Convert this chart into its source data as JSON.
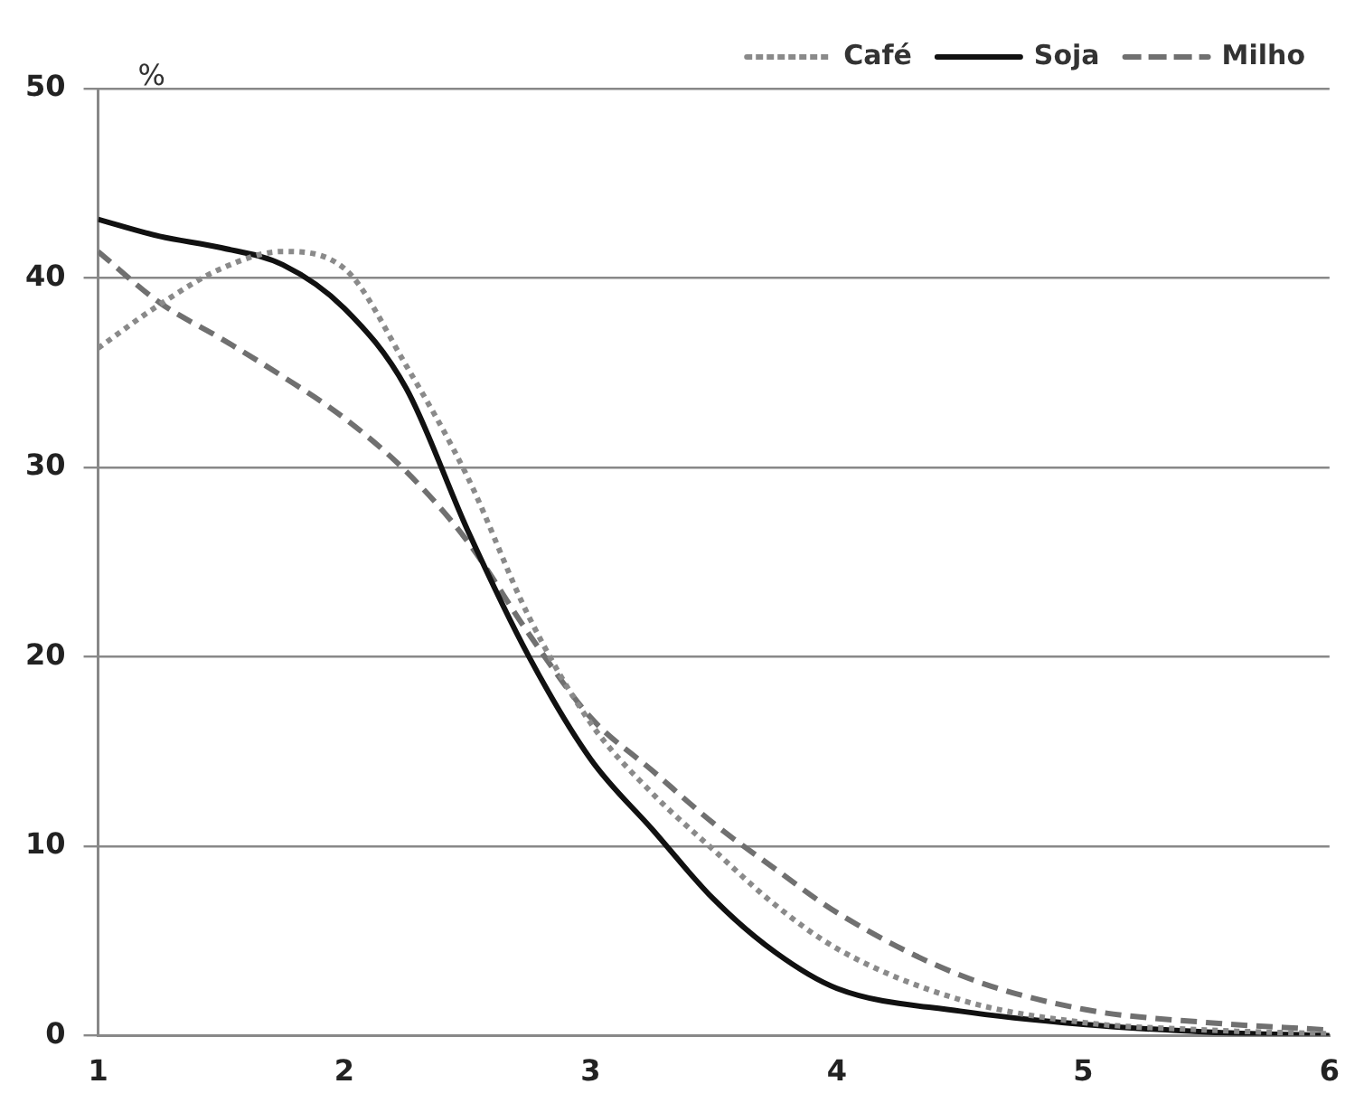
{
  "chart_data": {
    "type": "line",
    "ylabel": "%",
    "x": [
      1,
      1.25,
      1.5,
      1.75,
      2,
      2.25,
      2.5,
      2.75,
      3,
      3.25,
      3.5,
      3.75,
      4,
      4.5,
      5,
      5.5,
      6
    ],
    "series": [
      {
        "name": "Café",
        "color": "#8a8a8a",
        "line_style": "dotted",
        "values": [
          36.3,
          38.6,
          40.5,
          41.4,
          40.5,
          35.4,
          29.5,
          22.1,
          16.5,
          12.8,
          9.8,
          6.9,
          4.6,
          1.9,
          0.7,
          0.3,
          0.1
        ]
      },
      {
        "name": "Soja",
        "color": "#111111",
        "line_style": "solid",
        "values": [
          43.1,
          42.2,
          41.6,
          40.7,
          38.4,
          34.2,
          26.7,
          20.0,
          14.6,
          10.9,
          7.2,
          4.4,
          2.5,
          1.3,
          0.6,
          0.2,
          0
        ]
      },
      {
        "name": "Milho",
        "color": "#707070",
        "line_style": "dashed",
        "values": [
          41.4,
          38.7,
          36.8,
          34.8,
          32.6,
          29.8,
          26.1,
          21.2,
          16.8,
          14.0,
          11.2,
          8.8,
          6.5,
          3.2,
          1.4,
          0.7,
          0.3
        ]
      }
    ],
    "xlim": [
      1,
      6
    ],
    "xticks": [
      1,
      2,
      3,
      4,
      5,
      6
    ],
    "ylim": [
      0,
      50
    ],
    "yticks": [
      0,
      10,
      20,
      30,
      40,
      50
    ],
    "grid": "y",
    "legend": "top right",
    "marker": "none"
  }
}
